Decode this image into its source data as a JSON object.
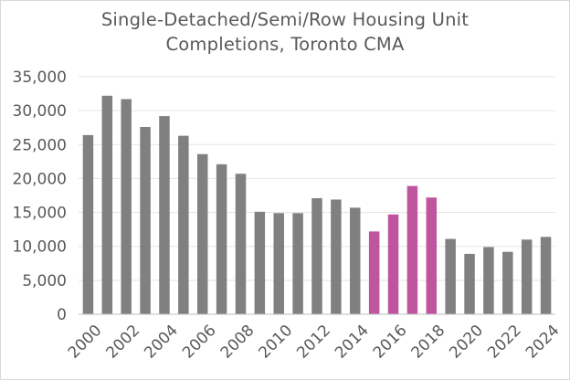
{
  "chart_data": {
    "type": "bar",
    "title_lines": [
      "Single-Detached/Semi/Row Housing Unit",
      "Completions, Toronto CMA"
    ],
    "xlabel": "",
    "ylabel": "",
    "ylim": [
      0,
      35000
    ],
    "yticks": [
      0,
      5000,
      10000,
      15000,
      20000,
      25000,
      30000,
      35000
    ],
    "ytick_labels": [
      "0",
      "5,000",
      "10,000",
      "15,000",
      "20,000",
      "25,000",
      "30,000",
      "35,000"
    ],
    "categories": [
      "2000",
      "2001",
      "2002",
      "2003",
      "2004",
      "2005",
      "2006",
      "2007",
      "2008",
      "2009",
      "2010",
      "2011",
      "2012",
      "2013",
      "2014",
      "2015",
      "2016",
      "2017",
      "2018",
      "2019",
      "2020",
      "2021",
      "2022",
      "2023",
      "2024"
    ],
    "x_tick_labels": [
      "2000",
      "",
      "2002",
      "",
      "2004",
      "",
      "2006",
      "",
      "2008",
      "",
      "2010",
      "",
      "2012",
      "",
      "2014",
      "",
      "2016",
      "",
      "2018",
      "",
      "2020",
      "",
      "2022",
      "",
      "2024"
    ],
    "values": [
      26400,
      32200,
      31700,
      27600,
      29200,
      26300,
      23600,
      22100,
      20700,
      15100,
      14900,
      14900,
      17100,
      16900,
      15700,
      12200,
      14700,
      18900,
      17200,
      11100,
      8900,
      9900,
      9200,
      11000,
      11400
    ],
    "highlight_indices": [
      15,
      16,
      17,
      18
    ],
    "grid": true,
    "legend": "none",
    "colors": {
      "bar": "#808080",
      "highlight": "#c0559f",
      "grid": "#e3e3e3",
      "axis": "#bfbfbf",
      "text": "#595959"
    }
  }
}
